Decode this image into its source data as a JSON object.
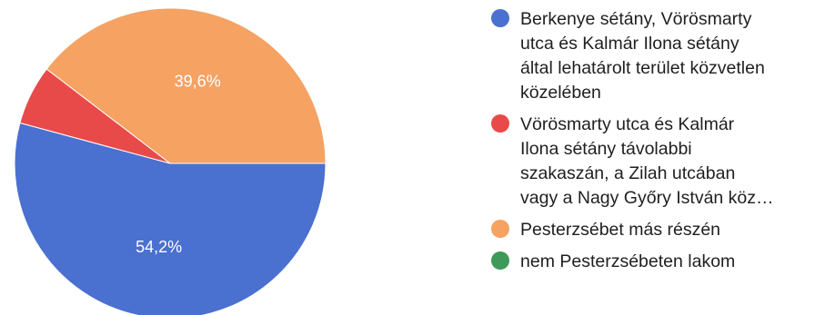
{
  "chart_data": {
    "type": "pie",
    "title": "",
    "slices": [
      {
        "label": "Berkenye sétány, Vörösmarty\nutca és Kalmár Ilona sétány\náltal lehatárolt terület közvetlen\nközelében",
        "value": 54.2,
        "value_label": "54,2%",
        "color": "#4a70d0"
      },
      {
        "label": "Vörösmarty utca és Kalmár\nIlona sétány távolabbi\nszakaszán, a Zilah utcában\nvagy a Nagy Győry István köz…",
        "value": 6.2,
        "value_label": "",
        "color": "#e84a4a"
      },
      {
        "label": "Pesterzsébet más részén",
        "value": 39.6,
        "value_label": "39,6%",
        "color": "#f5a263"
      },
      {
        "label": "nem Pesterzsébeten lakom",
        "value": 0,
        "value_label": "",
        "color": "#3f9a5a"
      }
    ],
    "legend_position": "right"
  }
}
